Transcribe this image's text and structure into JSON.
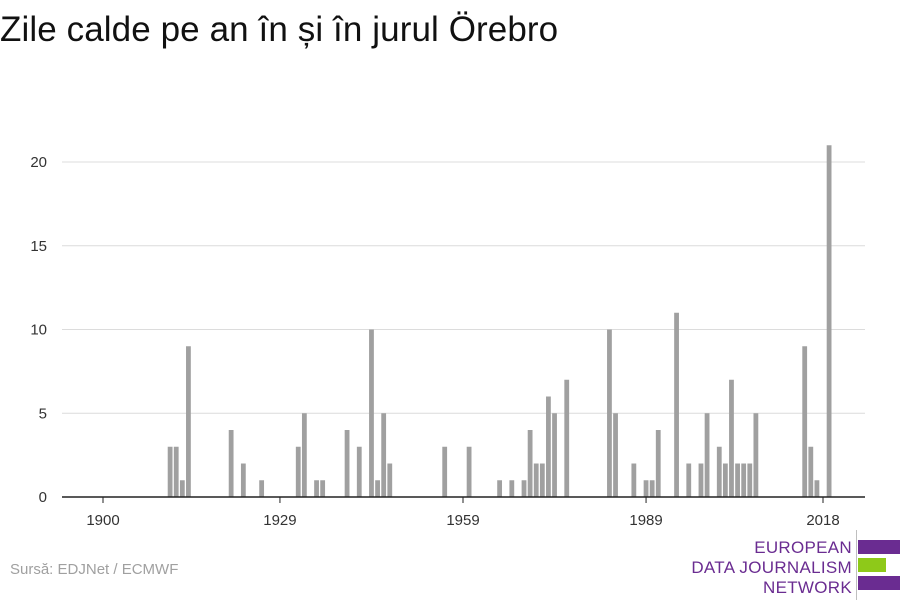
{
  "title": "Zile calde pe an în și în jurul Örebro",
  "source": "Sursă: EDJNet / ECMWF",
  "logo": {
    "lines": [
      "EUROPEAN",
      "DATA JOURNALISM",
      "NETWORK"
    ],
    "colors": {
      "purple": "#6a2c91",
      "green": "#8ec919"
    }
  },
  "colors": {
    "bar": "#a0a0a0",
    "grid": "#dcdcdc",
    "axis": "#222222"
  },
  "chart_data": {
    "type": "bar",
    "title": "Zile calde pe an în și în jurul Örebro",
    "xlabel": "",
    "ylabel": "",
    "x_ticks": [
      1900,
      1929,
      1959,
      1989,
      2018
    ],
    "y_ticks": [
      0,
      5,
      10,
      15,
      20
    ],
    "ylim": [
      0,
      22
    ],
    "xlim": [
      1896,
      2025
    ],
    "grid": true,
    "x": [
      1911,
      1912,
      1913,
      1914,
      1921,
      1923,
      1926,
      1932,
      1933,
      1935,
      1936,
      1940,
      1942,
      1944,
      1945,
      1946,
      1947,
      1956,
      1960,
      1965,
      1967,
      1969,
      1970,
      1971,
      1972,
      1973,
      1974,
      1976,
      1983,
      1984,
      1987,
      1989,
      1990,
      1991,
      1994,
      1996,
      1998,
      1999,
      2001,
      2002,
      2003,
      2004,
      2005,
      2006,
      2007,
      2015,
      2016,
      2017,
      2019
    ],
    "values": [
      3,
      3,
      1,
      9,
      4,
      2,
      1,
      3,
      5,
      1,
      1,
      4,
      3,
      10,
      1,
      5,
      2,
      3,
      3,
      1,
      1,
      1,
      4,
      2,
      2,
      6,
      5,
      7,
      10,
      5,
      2,
      1,
      1,
      4,
      11,
      2,
      2,
      5,
      3,
      2,
      7,
      2,
      2,
      2,
      5,
      9,
      3,
      1,
      21
    ]
  }
}
